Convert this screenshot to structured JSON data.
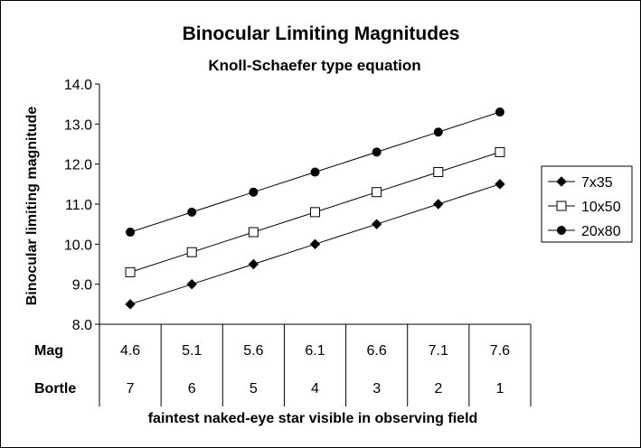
{
  "chart_data": {
    "type": "line",
    "title": "Binocular Limiting Magnitudes",
    "subtitle": "Knoll-Schaefer type equation",
    "ylabel": "Binocular limiting magnitude",
    "xlabel": "faintest naked-eye star visible in observing field",
    "ylim": [
      8.0,
      14.0
    ],
    "yticks": [
      "8.0",
      "9.0",
      "10.0",
      "11.0",
      "12.0",
      "13.0",
      "14.0"
    ],
    "grid": false,
    "legend_position": "right",
    "table_rows": [
      {
        "label": "Mag",
        "values": [
          "4.6",
          "5.1",
          "5.6",
          "6.1",
          "6.6",
          "7.1",
          "7.6"
        ]
      },
      {
        "label": "Bortle",
        "values": [
          "7",
          "6",
          "5",
          "4",
          "3",
          "2",
          "1"
        ]
      }
    ],
    "series": [
      {
        "name": "7x35",
        "marker": "diamond-filled",
        "values": [
          8.5,
          9.0,
          9.5,
          10.0,
          10.5,
          11.0,
          11.5
        ]
      },
      {
        "name": "10x50",
        "marker": "square-open",
        "values": [
          9.3,
          9.8,
          10.3,
          10.8,
          11.3,
          11.8,
          12.3
        ]
      },
      {
        "name": "20x80",
        "marker": "circle-filled",
        "values": [
          10.3,
          10.8,
          11.3,
          11.8,
          12.3,
          12.8,
          13.3
        ]
      }
    ]
  }
}
